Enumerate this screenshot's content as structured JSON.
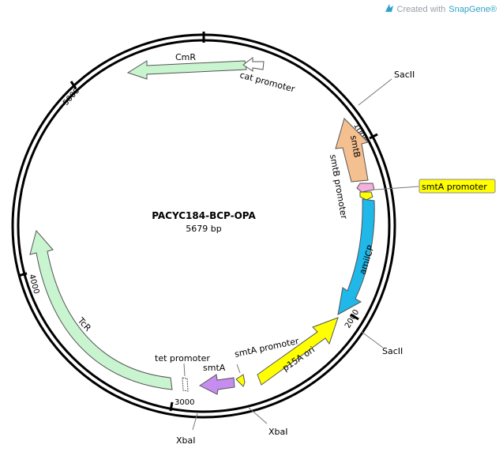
{
  "brand": {
    "prefix": "Created with",
    "name": "SnapGene®"
  },
  "map": {
    "name": "PACYC184-BCP-OPA",
    "length_label": "5679 bp",
    "total_bp": 5679
  },
  "ticks": [
    {
      "pos": 1000,
      "label": "1000"
    },
    {
      "pos": 2000,
      "label": "2000"
    },
    {
      "pos": 3000,
      "label": "3000"
    },
    {
      "pos": 4000,
      "label": "4000"
    },
    {
      "pos": 5000,
      "label": "5000"
    }
  ],
  "sites": [
    {
      "id": "sacii-1",
      "label": "SacII"
    },
    {
      "id": "sacii-2",
      "label": "SacII"
    },
    {
      "id": "xbai-1",
      "label": "XbaI"
    },
    {
      "id": "xbai-2",
      "label": "XbaI"
    }
  ],
  "features": [
    {
      "id": "cmr",
      "label": "CmR",
      "color": "#c8f5cf"
    },
    {
      "id": "cat-promoter",
      "label": "cat promoter",
      "color": "#ffffff"
    },
    {
      "id": "smtb",
      "label": "smtB",
      "color": "#f5c090"
    },
    {
      "id": "smtb-promoter",
      "label": "smtB promoter",
      "color": "#ffffff"
    },
    {
      "id": "smta-promoter-top",
      "label": "smtA promoter",
      "color": "#ffff00"
    },
    {
      "id": "amilcp",
      "label": "amilCP",
      "color": "#1fb8e8"
    },
    {
      "id": "p15a-ori",
      "label": "p15A ori",
      "color": "#ffff00"
    },
    {
      "id": "smta-promoter-bottom",
      "label": "smtA promoter",
      "color": "#ffff00"
    },
    {
      "id": "smta",
      "label": "smtA",
      "color": "#c68cf0"
    },
    {
      "id": "tet-promoter",
      "label": "tet promoter",
      "color": "#ffffff"
    },
    {
      "id": "tcr",
      "label": "TcR",
      "color": "#c8f5cf"
    }
  ]
}
